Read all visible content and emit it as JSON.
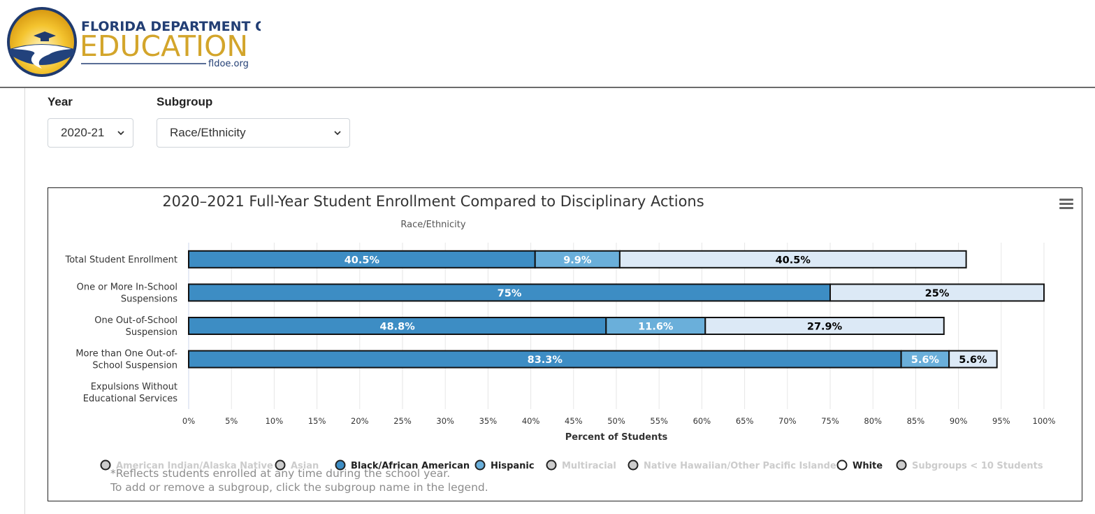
{
  "header": {
    "logo_line1": "FLORIDA DEPARTMENT OF",
    "logo_line2": "EDUCATION",
    "logo_line3": "fldoe.org"
  },
  "filters": {
    "year_label": "Year",
    "year_value": "2020-21",
    "subgroup_label": "Subgroup",
    "subgroup_value": "Race/Ethnicity"
  },
  "chart_data": {
    "type": "bar",
    "orientation": "horizontal",
    "stacked": true,
    "title": "2020–2021 Full-Year Student Enrollment Compared to Disciplinary Actions",
    "subtitle": "Race/Ethnicity",
    "xlabel": "Percent of Students",
    "xlim": [
      0,
      100
    ],
    "xticks": [
      "0%",
      "5%",
      "10%",
      "15%",
      "20%",
      "25%",
      "30%",
      "35%",
      "40%",
      "45%",
      "50%",
      "55%",
      "60%",
      "65%",
      "70%",
      "75%",
      "80%",
      "85%",
      "90%",
      "95%",
      "100%"
    ],
    "grid": true,
    "categories": [
      [
        "Total Student Enrollment"
      ],
      [
        "One or More In-School",
        "Suspensions"
      ],
      [
        "One Out-of-School",
        "Suspension"
      ],
      [
        "More than One Out-of-",
        "School Suspension"
      ],
      [
        "Expulsions Without",
        "Educational Services"
      ]
    ],
    "series": [
      {
        "name": "Black/African American",
        "color": "#3d8dc4",
        "values": [
          40.5,
          75,
          48.8,
          83.3,
          null
        ],
        "labels": [
          "40.5%",
          "75%",
          "48.8%",
          "83.3%",
          ""
        ]
      },
      {
        "name": "Hispanic",
        "color": "#6aafda",
        "values": [
          9.9,
          null,
          11.6,
          5.6,
          null
        ],
        "labels": [
          "9.9%",
          "",
          "11.6%",
          "5.6%",
          ""
        ]
      },
      {
        "name": "White",
        "color": "#dce9f6",
        "values": [
          40.5,
          25,
          27.9,
          5.6,
          null
        ],
        "labels": [
          "40.5%",
          "25%",
          "27.9%",
          "5.6%",
          ""
        ]
      }
    ],
    "legend_position": "bottom",
    "legend": [
      {
        "name": "American Indian/Alaska Native",
        "active": false
      },
      {
        "name": "Asian",
        "active": false
      },
      {
        "name": "Black/African American",
        "active": true,
        "color": "#3d8dc4"
      },
      {
        "name": "Hispanic",
        "active": true,
        "color": "#6aafda"
      },
      {
        "name": "Multiracial",
        "active": false
      },
      {
        "name": "Native Hawaiian/Other Pacific Islander",
        "active": false
      },
      {
        "name": "White",
        "active": true,
        "color": "#ffffff"
      },
      {
        "name": "Subgroups < 10 Students",
        "active": false
      }
    ]
  },
  "notes": {
    "line1": "*Reflects students enrolled at any time during the school year.",
    "line2": "To add or remove a subgroup, click the subgroup name in the legend."
  }
}
